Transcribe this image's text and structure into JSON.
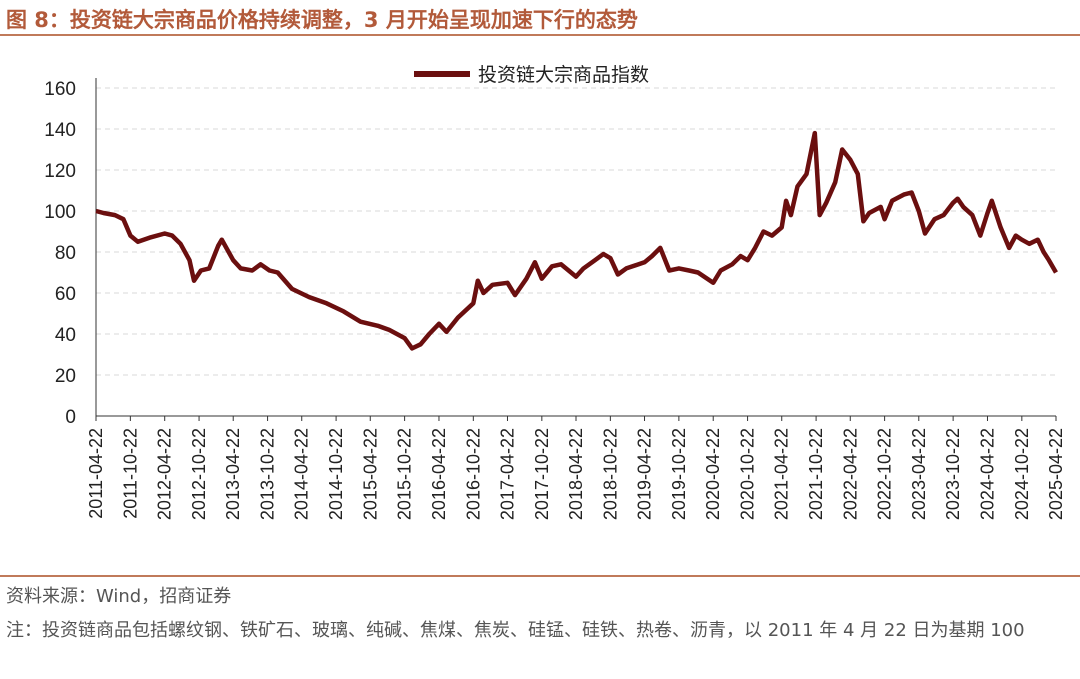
{
  "figure": {
    "title": "图 8：投资链大宗商品价格持续调整，3 月开始呈现加速下行的态势",
    "source": "资料来源：Wind，招商证券",
    "note": "注：投资链商品包括螺纹钢、铁矿石、玻璃、纯碱、焦煤、焦炭、硅锰、硅铁、热卷、沥青，以 2011 年 4 月 22 日为基期 100"
  },
  "colors": {
    "line": "#6b0f0f",
    "title": "#b25a3a",
    "rule": "#c07a5a",
    "grid": "#d9d9d9"
  },
  "chart_data": {
    "type": "line",
    "title": "",
    "xlabel": "",
    "ylabel": "",
    "ylim": [
      0,
      160
    ],
    "yticks": [
      0,
      20,
      40,
      60,
      80,
      100,
      120,
      140,
      160
    ],
    "xticks": [
      "2011-04-22",
      "2011-10-22",
      "2012-04-22",
      "2012-10-22",
      "2013-04-22",
      "2013-10-22",
      "2014-04-22",
      "2014-10-22",
      "2015-04-22",
      "2015-10-22",
      "2016-04-22",
      "2016-10-22",
      "2017-04-22",
      "2017-10-22",
      "2018-04-22",
      "2018-10-22",
      "2019-04-22",
      "2019-10-22",
      "2020-04-22",
      "2020-10-22",
      "2021-04-22",
      "2021-10-22",
      "2022-04-22",
      "2022-10-22",
      "2023-04-22",
      "2023-10-22",
      "2024-04-22",
      "2024-10-22",
      "2025-04-22"
    ],
    "grid": "horizontal dashed",
    "legend": "top-center",
    "series": [
      {
        "name": "投资链大宗商品指数",
        "points": [
          [
            "2011-04-22",
            100
          ],
          [
            "2011-06-01",
            99
          ],
          [
            "2011-08-01",
            98
          ],
          [
            "2011-09-15",
            96
          ],
          [
            "2011-10-22",
            88
          ],
          [
            "2011-12-01",
            85
          ],
          [
            "2012-02-01",
            87
          ],
          [
            "2012-04-22",
            89
          ],
          [
            "2012-06-01",
            88
          ],
          [
            "2012-07-15",
            84
          ],
          [
            "2012-09-01",
            76
          ],
          [
            "2012-09-25",
            66
          ],
          [
            "2012-11-01",
            71
          ],
          [
            "2012-12-15",
            72
          ],
          [
            "2013-02-01",
            83
          ],
          [
            "2013-02-20",
            86
          ],
          [
            "2013-04-22",
            76
          ],
          [
            "2013-06-01",
            72
          ],
          [
            "2013-08-01",
            71
          ],
          [
            "2013-09-15",
            74
          ],
          [
            "2013-11-01",
            71
          ],
          [
            "2013-12-15",
            70
          ],
          [
            "2014-03-01",
            62
          ],
          [
            "2014-06-01",
            58
          ],
          [
            "2014-09-01",
            55
          ],
          [
            "2014-12-01",
            51
          ],
          [
            "2015-03-01",
            46
          ],
          [
            "2015-06-01",
            44
          ],
          [
            "2015-08-01",
            42
          ],
          [
            "2015-10-22",
            38
          ],
          [
            "2015-12-01",
            33
          ],
          [
            "2016-01-15",
            35
          ],
          [
            "2016-03-01",
            40
          ],
          [
            "2016-04-22",
            45
          ],
          [
            "2016-06-01",
            41
          ],
          [
            "2016-08-01",
            48
          ],
          [
            "2016-10-22",
            55
          ],
          [
            "2016-11-15",
            66
          ],
          [
            "2016-12-15",
            60
          ],
          [
            "2017-02-01",
            64
          ],
          [
            "2017-04-22",
            65
          ],
          [
            "2017-06-01",
            59
          ],
          [
            "2017-08-01",
            67
          ],
          [
            "2017-09-15",
            75
          ],
          [
            "2017-10-22",
            67
          ],
          [
            "2017-12-15",
            73
          ],
          [
            "2018-02-01",
            74
          ],
          [
            "2018-04-22",
            68
          ],
          [
            "2018-06-01",
            72
          ],
          [
            "2018-08-01",
            76
          ],
          [
            "2018-09-15",
            79
          ],
          [
            "2018-10-22",
            77
          ],
          [
            "2018-12-01",
            69
          ],
          [
            "2019-01-15",
            72
          ],
          [
            "2019-04-22",
            75
          ],
          [
            "2019-06-01",
            78
          ],
          [
            "2019-07-15",
            82
          ],
          [
            "2019-09-01",
            71
          ],
          [
            "2019-10-22",
            72
          ],
          [
            "2019-12-15",
            71
          ],
          [
            "2020-02-01",
            70
          ],
          [
            "2020-04-22",
            65
          ],
          [
            "2020-06-01",
            71
          ],
          [
            "2020-08-01",
            74
          ],
          [
            "2020-09-15",
            78
          ],
          [
            "2020-10-22",
            76
          ],
          [
            "2020-12-01",
            82
          ],
          [
            "2021-01-15",
            90
          ],
          [
            "2021-03-01",
            88
          ],
          [
            "2021-04-22",
            92
          ],
          [
            "2021-05-15",
            105
          ],
          [
            "2021-06-10",
            98
          ],
          [
            "2021-07-15",
            112
          ],
          [
            "2021-09-01",
            118
          ],
          [
            "2021-10-15",
            138
          ],
          [
            "2021-11-10",
            98
          ],
          [
            "2021-12-15",
            104
          ],
          [
            "2022-02-01",
            114
          ],
          [
            "2022-03-10",
            130
          ],
          [
            "2022-04-22",
            125
          ],
          [
            "2022-06-01",
            118
          ],
          [
            "2022-07-01",
            95
          ],
          [
            "2022-08-01",
            99
          ],
          [
            "2022-10-01",
            102
          ],
          [
            "2022-10-22",
            96
          ],
          [
            "2022-12-01",
            105
          ],
          [
            "2023-02-01",
            108
          ],
          [
            "2023-03-15",
            109
          ],
          [
            "2023-04-22",
            100
          ],
          [
            "2023-05-25",
            89
          ],
          [
            "2023-07-15",
            96
          ],
          [
            "2023-09-01",
            98
          ],
          [
            "2023-10-22",
            104
          ],
          [
            "2023-11-15",
            106
          ],
          [
            "2023-12-15",
            102
          ],
          [
            "2024-02-01",
            98
          ],
          [
            "2024-03-15",
            88
          ],
          [
            "2024-04-22",
            99
          ],
          [
            "2024-05-15",
            105
          ],
          [
            "2024-07-01",
            92
          ],
          [
            "2024-08-15",
            82
          ],
          [
            "2024-09-20",
            88
          ],
          [
            "2024-10-22",
            86
          ],
          [
            "2024-12-01",
            84
          ],
          [
            "2025-01-15",
            86
          ],
          [
            "2025-02-15",
            80
          ],
          [
            "2025-03-15",
            76
          ],
          [
            "2025-04-22",
            70
          ]
        ]
      }
    ]
  }
}
